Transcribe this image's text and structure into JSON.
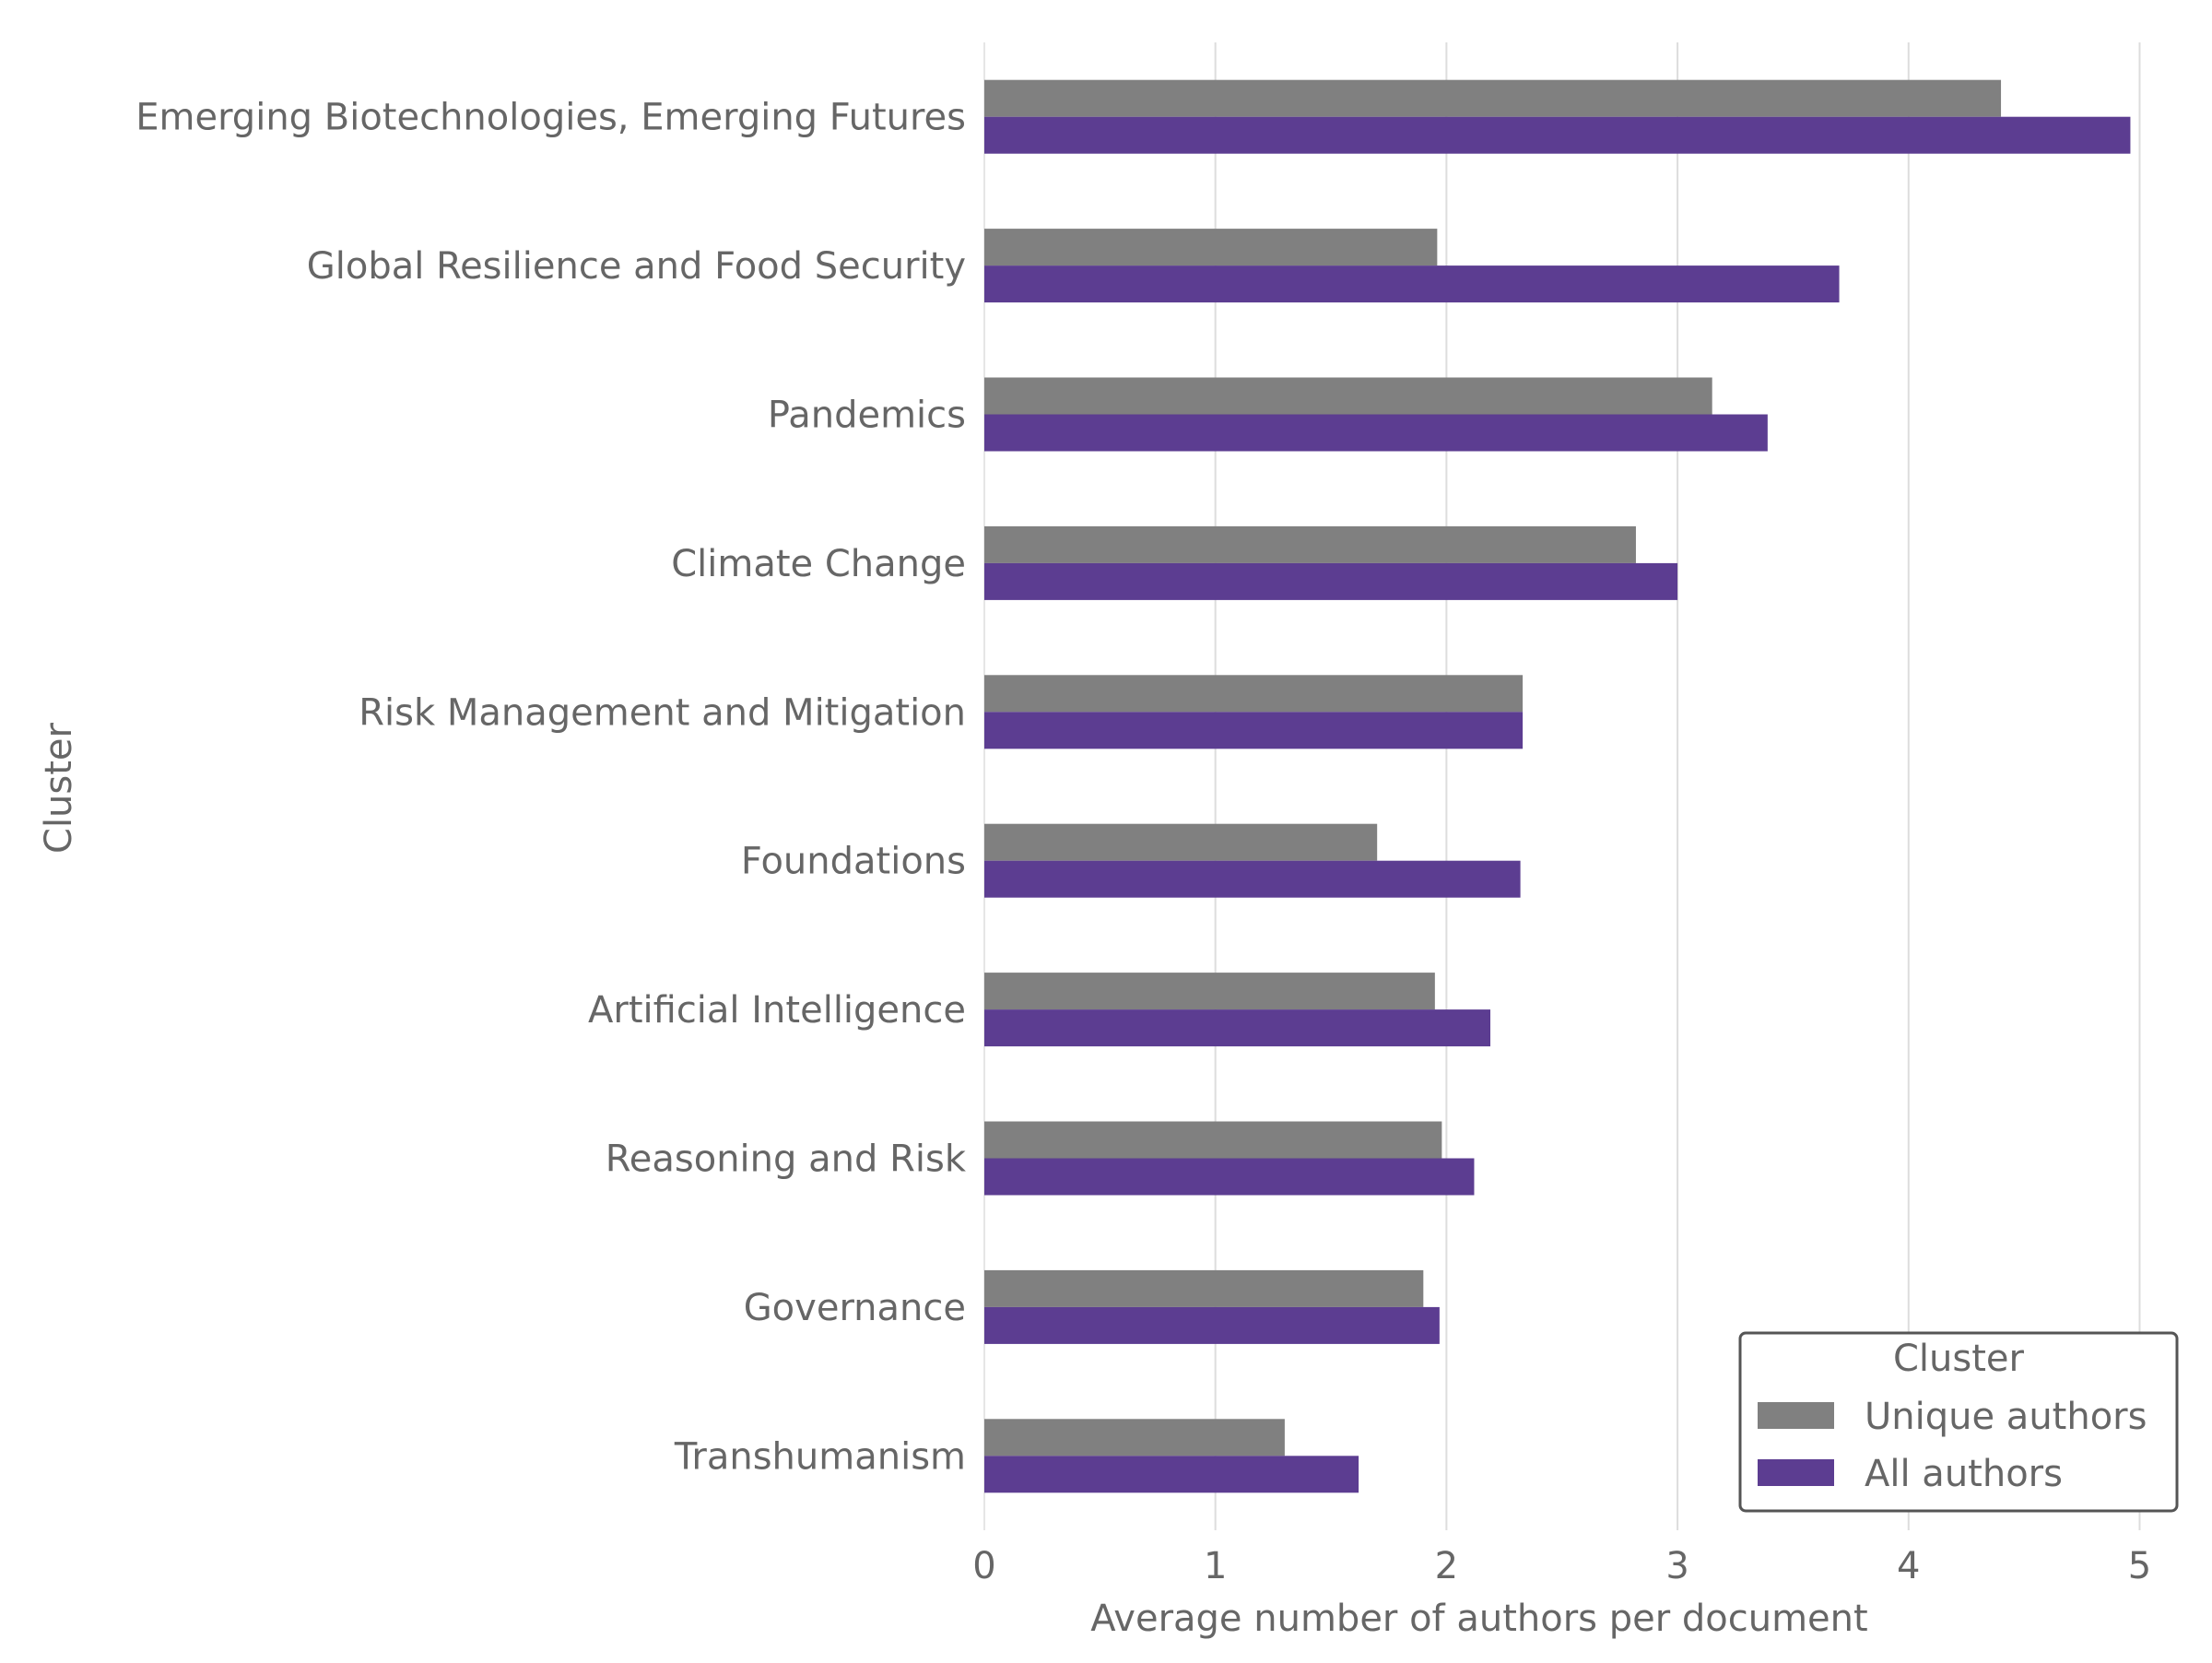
{
  "chart_data": {
    "type": "bar",
    "orientation": "horizontal",
    "title": "",
    "xlabel": "Average number of authors per document",
    "ylabel": "Cluster",
    "xlim": [
      0,
      5.05
    ],
    "xticks": [
      "0",
      "1",
      "2",
      "3",
      "4",
      "5"
    ],
    "grid": "vertical",
    "categories": [
      "Emerging Biotechnologies, Emerging Futures",
      "Global Resilience and Food Security",
      "Pandemics",
      "Climate Change",
      "Risk Management and Mitigation",
      "Foundations",
      "Artificial Intelligence",
      "Reasoning and Risk",
      "Governance",
      "Transhumanism"
    ],
    "series": [
      {
        "name": "Unique authors",
        "color": "#808080",
        "values": [
          4.4,
          1.96,
          3.15,
          2.82,
          2.33,
          1.7,
          1.95,
          1.98,
          1.9,
          1.3
        ]
      },
      {
        "name": "All authors",
        "color": "#5c3d91",
        "values": [
          4.96,
          3.7,
          3.39,
          3.0,
          2.33,
          2.32,
          2.19,
          2.12,
          1.97,
          1.62
        ]
      }
    ],
    "legend": {
      "title": "Cluster",
      "placement": "bottom-right"
    }
  }
}
